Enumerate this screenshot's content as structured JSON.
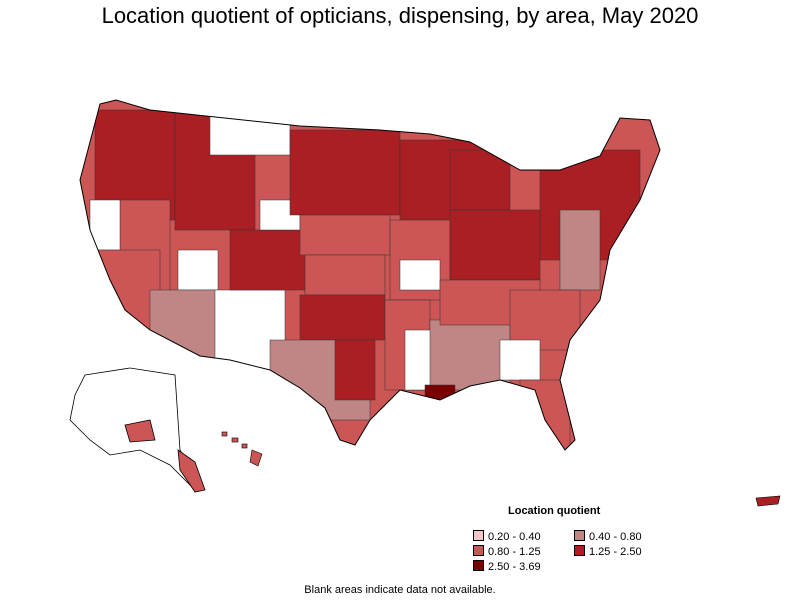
{
  "title": "Location quotient of opticians, dispensing, by area, May 2020",
  "legend": {
    "title": "Location quotient",
    "items": [
      {
        "label": "0.20 - 0.40",
        "color": "#f2c7c7"
      },
      {
        "label": "0.40 - 0.80",
        "color": "#c08686"
      },
      {
        "label": "0.80 - 1.25",
        "color": "#cc5555"
      },
      {
        "label": "1.25 - 2.50",
        "color": "#aa1f24"
      },
      {
        "label": "2.50 - 3.69",
        "color": "#7a0000"
      }
    ]
  },
  "no_data_color": "#ffffff",
  "footnote": "Blank areas indicate data not available."
}
